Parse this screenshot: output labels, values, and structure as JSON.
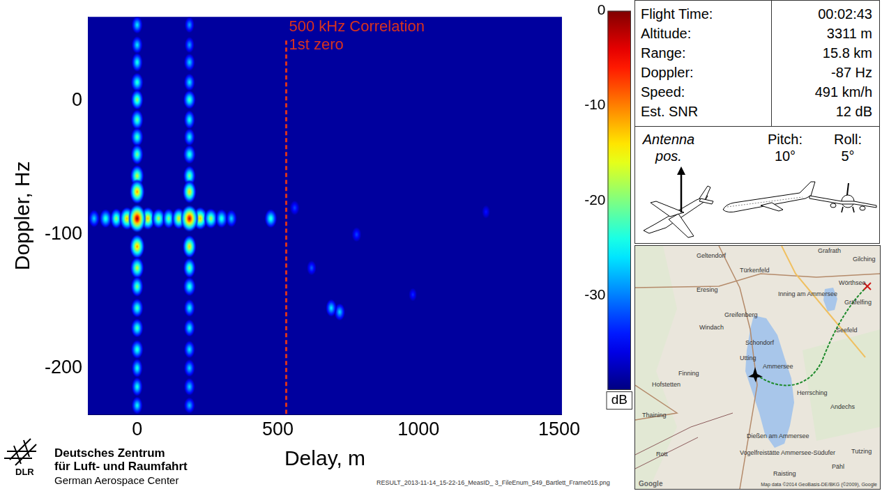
{
  "chart_data": {
    "type": "heatmap",
    "x_label": "Delay, m",
    "y_label": "Doppler, Hz",
    "xlim": [
      -175,
      1510
    ],
    "xticks": [
      0,
      500,
      1000,
      1500
    ],
    "ylim": [
      -235,
      63
    ],
    "yticks": [
      -200,
      -100,
      0
    ],
    "grid": false,
    "cells": [
      {
        "delay": 1240,
        "doppler": -83,
        "level": -34
      },
      {
        "delay": 980,
        "doppler": -145,
        "level": -33
      },
      {
        "delay": 780,
        "doppler": -100,
        "level": -32
      },
      {
        "delay": 560,
        "doppler": -80,
        "level": -32
      },
      {
        "delay": 620,
        "doppler": -125,
        "level": -31
      },
      {
        "delay": 720,
        "doppler": -158,
        "level": -26
      },
      {
        "delay": 690,
        "doppler": -155,
        "level": -25
      },
      {
        "delay": 475,
        "doppler": -88,
        "level": -22
      },
      {
        "delay": -153,
        "doppler": -88,
        "level": -26
      },
      {
        "delay": -112,
        "doppler": -88,
        "level": -22
      },
      {
        "delay": -74,
        "doppler": -88,
        "level": -18
      },
      {
        "delay": -36,
        "doppler": -88,
        "level": -12
      },
      {
        "delay": 38,
        "doppler": -88,
        "level": -12
      },
      {
        "delay": 76,
        "doppler": -88,
        "level": -17
      },
      {
        "delay": 112,
        "doppler": -88,
        "level": -19
      },
      {
        "delay": 148,
        "doppler": -88,
        "level": -14
      },
      {
        "delay": 224,
        "doppler": -88,
        "level": -12
      },
      {
        "delay": 262,
        "doppler": -88,
        "level": -17
      },
      {
        "delay": 300,
        "doppler": -88,
        "level": -22
      },
      {
        "delay": 335,
        "doppler": -88,
        "level": -26
      },
      {
        "delay": 186,
        "doppler": 57,
        "level": -28
      },
      {
        "delay": 186,
        "doppler": 42,
        "level": -28
      },
      {
        "delay": 186,
        "doppler": 29,
        "level": -26
      },
      {
        "delay": 186,
        "doppler": 14,
        "level": -25
      },
      {
        "delay": 186,
        "doppler": 1,
        "level": -21
      },
      {
        "delay": 186,
        "doppler": -14,
        "level": -23
      },
      {
        "delay": 186,
        "doppler": -27,
        "level": -24
      },
      {
        "delay": 186,
        "doppler": -40,
        "level": -22
      },
      {
        "delay": 186,
        "doppler": -56,
        "level": -19
      },
      {
        "delay": 186,
        "doppler": -68,
        "level": -13
      },
      {
        "delay": 186,
        "doppler": -109,
        "level": -13
      },
      {
        "delay": 186,
        "doppler": -125,
        "level": -19
      },
      {
        "delay": 186,
        "doppler": -139,
        "level": -22
      },
      {
        "delay": 186,
        "doppler": -155,
        "level": -24
      },
      {
        "delay": 186,
        "doppler": -170,
        "level": -24
      },
      {
        "delay": 186,
        "doppler": -186,
        "level": -25
      },
      {
        "delay": 186,
        "doppler": -200,
        "level": -26
      },
      {
        "delay": 186,
        "doppler": -214,
        "level": -26
      },
      {
        "delay": 186,
        "doppler": -228,
        "level": -27
      },
      {
        "delay": 0,
        "doppler": 57,
        "level": -25
      },
      {
        "delay": 0,
        "doppler": 42,
        "level": -25
      },
      {
        "delay": 0,
        "doppler": 29,
        "level": -23
      },
      {
        "delay": 0,
        "doppler": 14,
        "level": -22
      },
      {
        "delay": 0,
        "doppler": 1,
        "level": -18
      },
      {
        "delay": 0,
        "doppler": -14,
        "level": -20
      },
      {
        "delay": 0,
        "doppler": -27,
        "level": -21
      },
      {
        "delay": 0,
        "doppler": -40,
        "level": -19
      },
      {
        "delay": 0,
        "doppler": -56,
        "level": -16
      },
      {
        "delay": 0,
        "doppler": -68,
        "level": -10
      },
      {
        "delay": 0,
        "doppler": -109,
        "level": -10
      },
      {
        "delay": 0,
        "doppler": -125,
        "level": -16
      },
      {
        "delay": 0,
        "doppler": -139,
        "level": -19
      },
      {
        "delay": 0,
        "doppler": -155,
        "level": -21
      },
      {
        "delay": 0,
        "doppler": -170,
        "level": -21
      },
      {
        "delay": 0,
        "doppler": -186,
        "level": -22
      },
      {
        "delay": 0,
        "doppler": -200,
        "level": -23
      },
      {
        "delay": 0,
        "doppler": -214,
        "level": -23
      },
      {
        "delay": 0,
        "doppler": -228,
        "level": -24
      },
      {
        "delay": 186,
        "doppler": -88,
        "level": -2
      },
      {
        "delay": 0,
        "doppler": -88,
        "level": 0
      }
    ],
    "colorbar": {
      "range": [
        -40,
        0
      ],
      "ticks": [
        0,
        -10,
        -20,
        -30
      ],
      "label": "dB"
    },
    "annotation": {
      "text": [
        "500 kHz Correlation",
        "1st zero"
      ],
      "x": 530,
      "line_style": "dashed",
      "color": "#d8321e"
    }
  },
  "info_table": {
    "rows": [
      [
        "Flight Time:",
        "00:02:43"
      ],
      [
        "Altitude:",
        "3311 m"
      ],
      [
        "Range:",
        "15.8 km"
      ],
      [
        "Doppler:",
        "-87 Hz"
      ],
      [
        "Speed:",
        "491 km/h"
      ],
      [
        "Est. SNR",
        "12 dB"
      ]
    ]
  },
  "attitude": {
    "antenna": "Antenna pos.",
    "pitch_label": "Pitch:",
    "pitch": "10°",
    "roll_label": "Roll:",
    "roll": "5°"
  },
  "map": {
    "places": [
      "Geltendorf",
      "Grafrath",
      "Türkenfeld",
      "Eresing",
      "Inning am Ammersee",
      "Wörthsee",
      "Gilching",
      "Gräfelfing",
      "Greifenberg",
      "Windach",
      "Schondorf",
      "Seefeld",
      "Utting",
      "Finning",
      "Hofstetten",
      "Ammersee",
      "Herrsching",
      "Andechs",
      "Thaining",
      "Dießen am Ammersee",
      "Vogelfreistätte Ammersee-Südufer",
      "Rott",
      "Raisting",
      "Pähl",
      "Tutzing"
    ],
    "attribution": "Map data ©2014 GeoBasis-DE/BKG (©2009), Google",
    "logo": "Google"
  },
  "footer": {
    "logo": "DLR",
    "name": [
      "Deutsches Zentrum",
      "für Luft- und Raumfahrt"
    ],
    "name_en": "German Aerospace Center",
    "file": "RESULT_2013-11-14_15-22-16_MeasID_ 3_FileEnum_549_Bartlett_Frame015.png"
  }
}
